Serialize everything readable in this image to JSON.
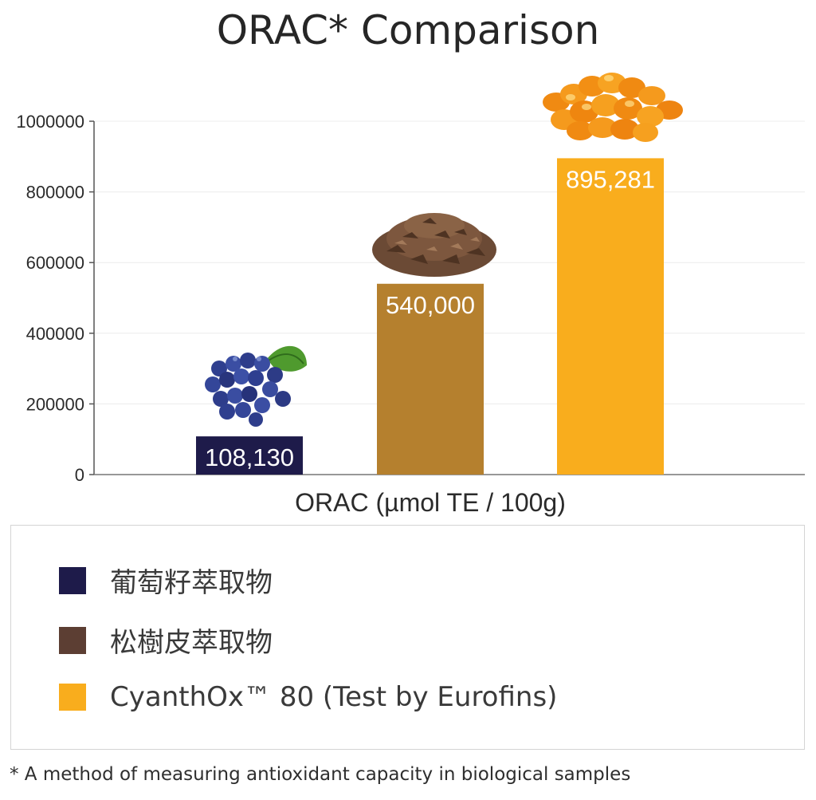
{
  "chart_data": {
    "type": "bar",
    "title": "ORAC* Comparison",
    "xlabel": "ORAC (µmol TE / 100g)",
    "ylabel": "",
    "ylim": [
      0,
      1000000
    ],
    "yticks": [
      "0",
      "200000",
      "400000",
      "600000",
      "800000",
      "1000000"
    ],
    "ytick_values": [
      0,
      200000,
      400000,
      600000,
      800000,
      1000000
    ],
    "grid": true,
    "legend_position": "bottom",
    "categories": [
      "葡萄籽萃取物",
      "松樹皮萃取物",
      "CyanthOx™ 80 (Test by Eurofins)"
    ],
    "values": [
      108130,
      540000,
      895281
    ],
    "data_labels": [
      "108,130",
      "540,000",
      "895,281"
    ],
    "colors": [
      "#1e1b4a",
      "#b5802e",
      "#f9ad1d"
    ],
    "legend_colors": [
      "#1e1b4a",
      "#5c3e33",
      "#f9ad1d"
    ]
  },
  "footnote": "* A method of measuring antioxidant capacity in biological samples"
}
